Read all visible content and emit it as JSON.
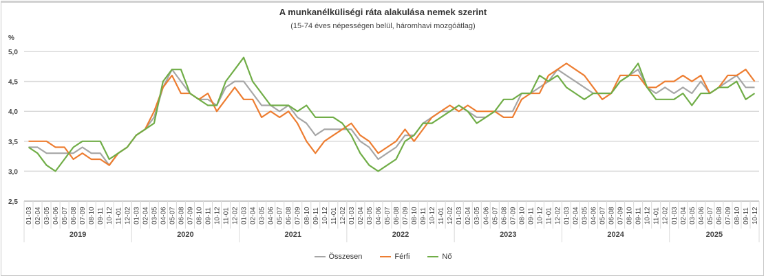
{
  "chart_data": {
    "type": "line",
    "title": "A munkanélküliségi ráta alakulása nemek szerint",
    "subtitle": "(15-74 éves népességen belül, háromhavi mozgóátlag)",
    "ylabel": "%",
    "xlabel": "",
    "ylim": [
      2.5,
      5.0
    ],
    "yticks": [
      "2,5",
      "3,0",
      "3,5",
      "4,0",
      "4,5",
      "5,0"
    ],
    "grid": true,
    "legend_position": "bottom",
    "years": [
      {
        "label": "2019",
        "count": 12
      },
      {
        "label": "2020",
        "count": 12
      },
      {
        "label": "2021",
        "count": 12
      },
      {
        "label": "2022",
        "count": 12
      },
      {
        "label": "2023",
        "count": 12
      },
      {
        "label": "2024",
        "count": 12
      },
      {
        "label": "2025",
        "count": 10
      }
    ],
    "period_labels": [
      "01-03",
      "02-04",
      "03-05",
      "04-06",
      "05-07",
      "06-08",
      "07-09",
      "08-10",
      "09-11",
      "10-12",
      "11-01",
      "12-02"
    ],
    "series": [
      {
        "name": "Összesen",
        "color": "#a6a6a6",
        "values": [
          3.4,
          3.4,
          3.3,
          3.3,
          3.3,
          3.3,
          3.4,
          3.3,
          3.3,
          3.1,
          3.3,
          3.4,
          3.6,
          3.7,
          3.9,
          4.4,
          4.7,
          4.5,
          4.3,
          4.2,
          4.2,
          4.1,
          4.4,
          4.5,
          4.5,
          4.3,
          4.1,
          4.1,
          4.0,
          4.1,
          3.9,
          3.8,
          3.6,
          3.7,
          3.7,
          3.7,
          3.7,
          3.5,
          3.4,
          3.2,
          3.3,
          3.4,
          3.6,
          3.6,
          3.8,
          3.9,
          4.0,
          4.0,
          4.1,
          4.0,
          3.9,
          3.9,
          4.0,
          4.0,
          4.0,
          4.3,
          4.3,
          4.4,
          4.5,
          4.7,
          4.6,
          4.5,
          4.4,
          4.3,
          4.3,
          4.3,
          4.5,
          4.6,
          4.7,
          4.4,
          4.3,
          4.4,
          4.3,
          4.4,
          4.3,
          4.5,
          4.3,
          4.4,
          4.5,
          4.6,
          4.4,
          4.4
        ]
      },
      {
        "name": "Férfi",
        "color": "#ed7d31",
        "values": [
          3.5,
          3.5,
          3.5,
          3.4,
          3.4,
          3.2,
          3.3,
          3.2,
          3.2,
          3.1,
          3.3,
          3.4,
          3.6,
          3.7,
          4.0,
          4.4,
          4.6,
          4.3,
          4.3,
          4.2,
          4.3,
          4.0,
          4.2,
          4.4,
          4.2,
          4.2,
          3.9,
          4.0,
          3.9,
          4.0,
          3.8,
          3.5,
          3.3,
          3.5,
          3.6,
          3.7,
          3.8,
          3.6,
          3.5,
          3.3,
          3.4,
          3.5,
          3.7,
          3.5,
          3.7,
          3.9,
          4.0,
          4.1,
          4.0,
          4.1,
          4.0,
          4.0,
          4.0,
          3.9,
          3.9,
          4.2,
          4.3,
          4.3,
          4.6,
          4.7,
          4.8,
          4.7,
          4.6,
          4.4,
          4.2,
          4.3,
          4.6,
          4.6,
          4.6,
          4.4,
          4.4,
          4.5,
          4.5,
          4.6,
          4.5,
          4.6,
          4.3,
          4.4,
          4.6,
          4.6,
          4.7,
          4.5
        ]
      },
      {
        "name": "Nő",
        "color": "#70ad47",
        "values": [
          3.4,
          3.3,
          3.1,
          3.0,
          3.2,
          3.4,
          3.5,
          3.5,
          3.5,
          3.2,
          3.3,
          3.4,
          3.6,
          3.7,
          3.8,
          4.5,
          4.7,
          4.7,
          4.3,
          4.2,
          4.1,
          4.1,
          4.5,
          4.7,
          4.9,
          4.5,
          4.3,
          4.1,
          4.1,
          4.1,
          4.0,
          4.1,
          3.9,
          3.9,
          3.9,
          3.8,
          3.6,
          3.3,
          3.1,
          3.0,
          3.1,
          3.2,
          3.5,
          3.6,
          3.8,
          3.8,
          3.9,
          4.0,
          4.1,
          4.0,
          3.8,
          3.9,
          4.0,
          4.2,
          4.2,
          4.3,
          4.3,
          4.6,
          4.5,
          4.6,
          4.4,
          4.3,
          4.2,
          4.3,
          4.3,
          4.3,
          4.5,
          4.6,
          4.8,
          4.4,
          4.2,
          4.2,
          4.2,
          4.3,
          4.1,
          4.3,
          4.3,
          4.4,
          4.4,
          4.5,
          4.2,
          4.3
        ]
      }
    ]
  },
  "legend": [
    {
      "label": "Összesen",
      "color": "#a6a6a6"
    },
    {
      "label": "Férfi",
      "color": "#ed7d31"
    },
    {
      "label": "Nő",
      "color": "#70ad47"
    }
  ]
}
